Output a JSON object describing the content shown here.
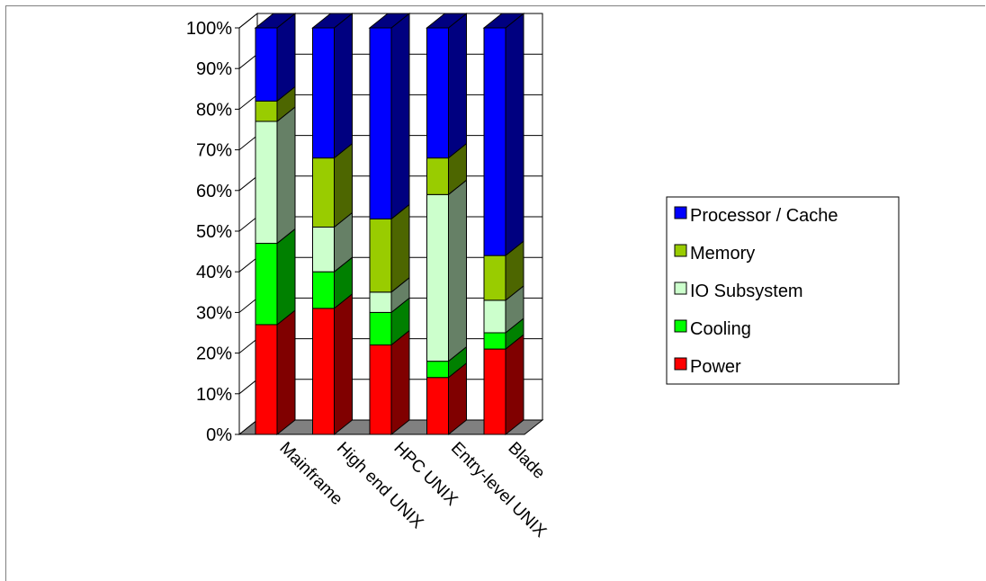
{
  "chart_data": {
    "type": "bar",
    "stacked": true,
    "percent_stacked": true,
    "three_d": true,
    "categories": [
      "Mainframe",
      "High end UNIX",
      "HPC UNIX",
      "Entry-level UNIX",
      "Blade"
    ],
    "series": [
      {
        "name": "Power",
        "color": "#ff0000",
        "side_color": "#800000",
        "values": [
          27,
          31,
          22,
          14,
          21
        ]
      },
      {
        "name": "Cooling",
        "color": "#00ff00",
        "side_color": "#008000",
        "values": [
          20,
          9,
          8,
          4,
          4
        ]
      },
      {
        "name": "IO Subsystem",
        "color": "#ccffcc",
        "side_color": "#668066",
        "values": [
          30,
          11,
          5,
          41,
          8
        ]
      },
      {
        "name": "Memory",
        "color": "#99cc00",
        "side_color": "#4d6600",
        "values": [
          5,
          17,
          18,
          9,
          11
        ]
      },
      {
        "name": "Processor / Cache",
        "color": "#0000ff",
        "side_color": "#000080",
        "values": [
          18,
          32,
          47,
          32,
          56
        ]
      }
    ],
    "y_ticks": [
      "0%",
      "10%",
      "20%",
      "30%",
      "40%",
      "50%",
      "60%",
      "70%",
      "80%",
      "90%",
      "100%"
    ],
    "ylim": [
      0,
      100
    ],
    "grid": true,
    "legend_position": "right",
    "legend_order": [
      "Processor / Cache",
      "Memory",
      "IO Subsystem",
      "Cooling",
      "Power"
    ],
    "floor_color": "#808080"
  }
}
